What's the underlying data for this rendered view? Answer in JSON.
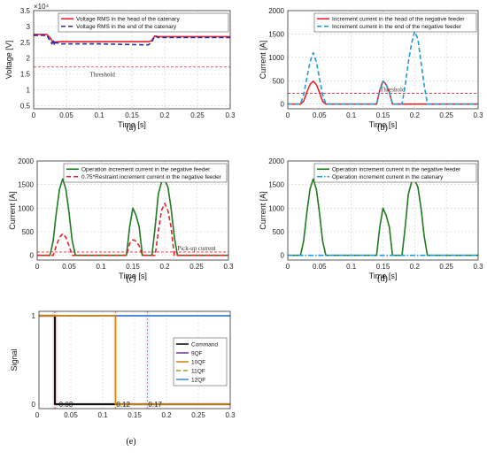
{
  "chart_data": [
    {
      "id": "a",
      "type": "line",
      "caption": "(a)",
      "xlabel": "Time [s]",
      "ylabel": "Voltage [V]",
      "exponent_label": "×10⁴",
      "xlim": [
        0,
        0.3
      ],
      "ylim": [
        0.4,
        3.5
      ],
      "xticks": [
        0,
        0.05,
        0.1,
        0.15,
        0.2,
        0.25,
        0.3
      ],
      "yticks": [
        0.5,
        1,
        1.5,
        2,
        2.5,
        3,
        3.5
      ],
      "legend_position": "top-right",
      "grid": true,
      "series": [
        {
          "name": "Voltage RMS in the head of the catenary",
          "color": "#e8202a",
          "dash": "solid",
          "x": [
            0,
            0.02,
            0.025,
            0.028,
            0.03,
            0.04,
            0.1,
            0.17,
            0.175,
            0.18,
            0.185,
            0.19,
            0.3
          ],
          "y": [
            2.75,
            2.75,
            2.65,
            2.55,
            2.5,
            2.52,
            2.52,
            2.52,
            2.52,
            2.55,
            2.7,
            2.68,
            2.68
          ]
        },
        {
          "name": "Voltage RMS in the end of the catenary",
          "color": "#2a2aa8",
          "dash": "dashed",
          "x": [
            0,
            0.02,
            0.025,
            0.028,
            0.03,
            0.032,
            0.034,
            0.04,
            0.1,
            0.17,
            0.175,
            0.18,
            0.185,
            0.19,
            0.3
          ],
          "y": [
            2.72,
            2.72,
            2.55,
            2.45,
            2.58,
            2.4,
            2.5,
            2.45,
            2.45,
            2.42,
            2.42,
            2.5,
            2.7,
            2.65,
            2.65
          ]
        }
      ],
      "threshold": {
        "label": "Threshold",
        "value": 1.72,
        "color": "#e8202a"
      }
    },
    {
      "id": "b",
      "type": "line",
      "caption": "(b)",
      "xlabel": "Time [s]",
      "ylabel": "Current [A]",
      "xlim": [
        0,
        0.3
      ],
      "ylim": [
        -100,
        2000
      ],
      "xticks": [
        0,
        0.05,
        0.1,
        0.15,
        0.2,
        0.25,
        0.3
      ],
      "yticks": [
        0,
        500,
        1000,
        1500,
        2000
      ],
      "legend_position": "top-right",
      "grid": true,
      "series": [
        {
          "name": "Increment current in the head of the negative feeder",
          "color": "#e8202a",
          "dash": "solid",
          "x": [
            0,
            0.02,
            0.025,
            0.03,
            0.035,
            0.04,
            0.045,
            0.05,
            0.055,
            0.06,
            0.14,
            0.145,
            0.15,
            0.155,
            0.16,
            0.165,
            0.3
          ],
          "y": [
            0,
            0,
            60,
            250,
            420,
            490,
            420,
            250,
            60,
            0,
            0,
            300,
            490,
            420,
            250,
            0,
            0
          ]
        },
        {
          "name": "Increment current in the end of the negative feeder",
          "color": "#1e9ad6",
          "dash": "dashed",
          "x": [
            0,
            0.02,
            0.025,
            0.03,
            0.035,
            0.04,
            0.045,
            0.05,
            0.055,
            0.06,
            0.14,
            0.145,
            0.15,
            0.155,
            0.16,
            0.165,
            0.18,
            0.185,
            0.19,
            0.195,
            0.2,
            0.205,
            0.21,
            0.215,
            0.22,
            0.3
          ],
          "y": [
            0,
            0,
            200,
            550,
            900,
            1100,
            900,
            550,
            200,
            0,
            0,
            300,
            490,
            420,
            250,
            0,
            0,
            400,
            900,
            1300,
            1550,
            1400,
            900,
            400,
            0,
            0
          ]
        }
      ],
      "threshold": {
        "label": "Threshold",
        "value": 230,
        "color": "#e8202a"
      }
    },
    {
      "id": "c",
      "type": "line",
      "caption": "(c)",
      "xlabel": "Time [s]",
      "ylabel": "Current [A]",
      "xlim": [
        0,
        0.3
      ],
      "ylim": [
        -100,
        2000
      ],
      "xticks": [
        0,
        0.05,
        0.1,
        0.15,
        0.2,
        0.25,
        0.3
      ],
      "yticks": [
        0,
        500,
        1000,
        1500,
        2000
      ],
      "legend_position": "top-right",
      "grid": true,
      "series": [
        {
          "name": "Operation increment current in the negative feeder",
          "color": "#1f7a1f",
          "dash": "solid",
          "x": [
            0,
            0.02,
            0.025,
            0.03,
            0.035,
            0.04,
            0.045,
            0.05,
            0.055,
            0.06,
            0.14,
            0.145,
            0.15,
            0.155,
            0.16,
            0.165,
            0.18,
            0.185,
            0.19,
            0.195,
            0.2,
            0.205,
            0.21,
            0.215,
            0.22,
            0.3
          ],
          "y": [
            0,
            0,
            300,
            900,
            1400,
            1620,
            1400,
            900,
            300,
            0,
            0,
            600,
            1000,
            850,
            600,
            0,
            0,
            600,
            1300,
            1550,
            1600,
            1450,
            1000,
            400,
            0,
            0
          ]
        },
        {
          "name": "0.75*Restraint increment current in the negative feeder",
          "color": "#e8202a",
          "dash": "dashed",
          "x": [
            0,
            0.025,
            0.03,
            0.035,
            0.04,
            0.045,
            0.05,
            0.055,
            0.14,
            0.145,
            0.15,
            0.155,
            0.16,
            0.165,
            0.185,
            0.19,
            0.195,
            0.2,
            0.205,
            0.21,
            0.215,
            0.3
          ],
          "y": [
            0,
            0,
            200,
            380,
            460,
            380,
            200,
            0,
            0,
            250,
            330,
            300,
            200,
            0,
            0,
            500,
            950,
            1100,
            950,
            600,
            0,
            0
          ]
        }
      ],
      "threshold": {
        "label": "Pick-up current",
        "value": 70,
        "color": "#e8202a"
      }
    },
    {
      "id": "d",
      "type": "line",
      "caption": "(d)",
      "xlabel": "Time [s]",
      "ylabel": "Current [A]",
      "xlim": [
        0,
        0.3
      ],
      "ylim": [
        -100,
        2000
      ],
      "xticks": [
        0,
        0.05,
        0.1,
        0.15,
        0.2,
        0.25,
        0.3
      ],
      "yticks": [
        0,
        500,
        1000,
        1500,
        2000
      ],
      "legend_position": "top-right",
      "grid": true,
      "series": [
        {
          "name": "Operation increment current in the negative feeder",
          "color": "#1f7a1f",
          "dash": "solid",
          "x": [
            0,
            0.02,
            0.025,
            0.03,
            0.035,
            0.04,
            0.045,
            0.05,
            0.055,
            0.06,
            0.14,
            0.145,
            0.15,
            0.155,
            0.16,
            0.165,
            0.18,
            0.185,
            0.19,
            0.195,
            0.2,
            0.205,
            0.21,
            0.215,
            0.22,
            0.3
          ],
          "y": [
            0,
            0,
            300,
            900,
            1400,
            1620,
            1400,
            900,
            300,
            0,
            0,
            600,
            1000,
            850,
            600,
            0,
            0,
            600,
            1300,
            1550,
            1600,
            1450,
            1000,
            400,
            0,
            0
          ]
        },
        {
          "name": "Operation increment current in the catenary",
          "color": "#1e9ad6",
          "dash": "dashdot",
          "x": [
            0,
            0.3
          ],
          "y": [
            0,
            0
          ]
        }
      ]
    },
    {
      "id": "e",
      "type": "line",
      "caption": "(e)",
      "xlabel": "",
      "ylabel": "Signal",
      "xlim": [
        0,
        0.3
      ],
      "ylim": [
        -0.05,
        1.05
      ],
      "xticks": [
        0.05,
        0.1,
        0.15,
        0.2,
        0.25,
        0.3
      ],
      "yticks": [
        0,
        1
      ],
      "legend_position": "right",
      "grid": true,
      "series": [
        {
          "name": "Command",
          "color": "#111111",
          "dash": "solid",
          "x": [
            0,
            0.025,
            0.025,
            0.3
          ],
          "y": [
            1,
            1,
            0,
            0
          ]
        },
        {
          "name": "9QF",
          "color": "#7b3fa0",
          "dash": "solid",
          "x": [
            0,
            0.3
          ],
          "y": [
            1,
            1
          ]
        },
        {
          "name": "10QF",
          "color": "#d08a1a",
          "dash": "solid",
          "x": [
            0,
            0.025,
            0.025,
            0.12,
            0.12,
            0.3
          ],
          "y": [
            1,
            1,
            1,
            1,
            0,
            0
          ]
        },
        {
          "name": "11QF",
          "color": "#7fb02a",
          "dash": "dashed",
          "x": [
            0.17,
            0.3
          ],
          "y": [
            1,
            1
          ]
        },
        {
          "name": "12QF",
          "color": "#4a8ee0",
          "dash": "solid",
          "x": [
            0.12,
            0.17,
            0.17,
            0.3
          ],
          "y": [
            1,
            1,
            1,
            1
          ]
        }
      ],
      "annotations": [
        {
          "text": "0.03",
          "x": 0.03
        },
        {
          "text": "0.12",
          "x": 0.12
        },
        {
          "text": "0.17",
          "x": 0.17
        }
      ],
      "event_lines": [
        0.025,
        0.12,
        0.17
      ]
    }
  ]
}
